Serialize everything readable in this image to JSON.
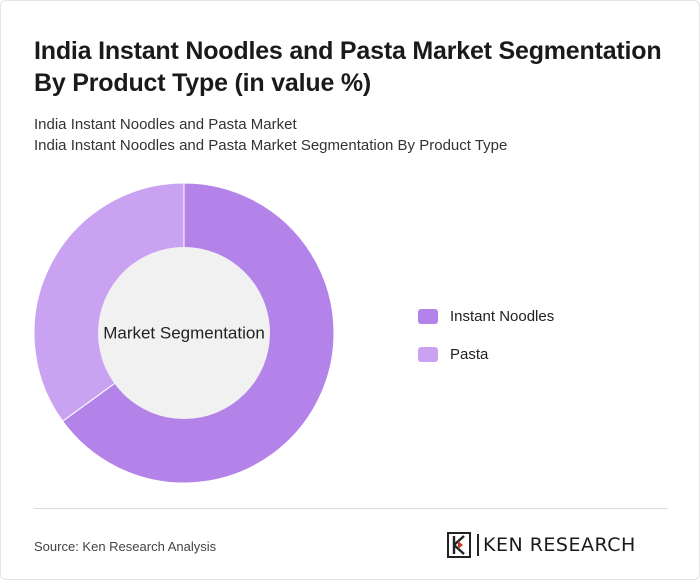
{
  "header": {
    "title": "India Instant Noodles and Pasta Market Segmentation By Product Type (in value %)",
    "subtitle_line1": "India Instant Noodles and Pasta Market",
    "subtitle_line2": "India Instant Noodles and Pasta Market Segmentation By Product Type"
  },
  "chart_data": {
    "type": "pie",
    "center_label": "Market Segmentation",
    "categories": [
      "Instant Noodles",
      "Pasta"
    ],
    "values": [
      65,
      35
    ],
    "colors": [
      "#b383ea",
      "#c9a3f1"
    ],
    "legend_position": "right"
  },
  "footer": {
    "source": "Source: Ken Research Analysis",
    "logo_text": "KEN RESEARCH"
  }
}
